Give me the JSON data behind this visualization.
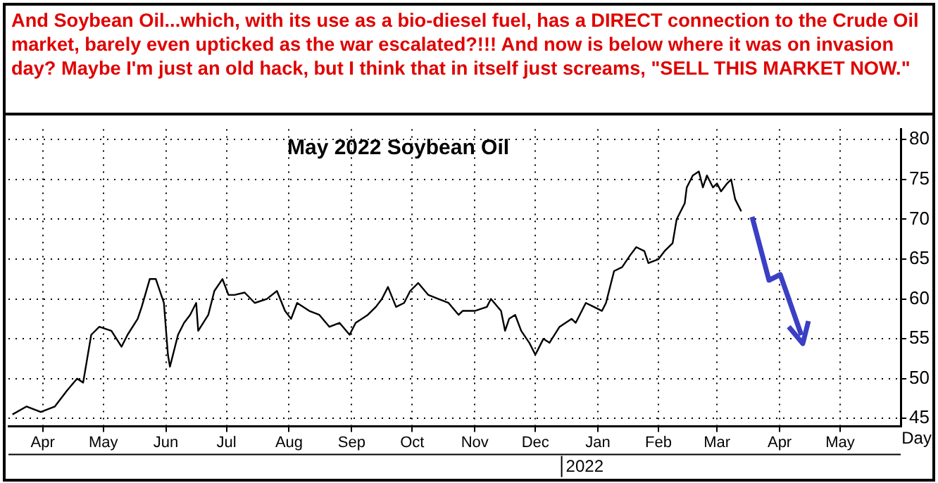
{
  "chart_data": {
    "type": "line",
    "title": "May 2022 Soybean Oil",
    "xlabel": "Day",
    "annotations": [
      "And Soybean Oil...which, with its use as a bio-diesel fuel, has a DIRECT connection to the Crude Oil market, barely even upticked as the war escalated?!!! And now is below where it was on invasion day? Maybe I'm just an old hack, but I think that in itself just screams, \"SELL THIS MARKET NOW.\"",
      "2022"
    ],
    "x": [
      "2021-04-01",
      "2021-04-08",
      "2021-04-15",
      "2021-04-22",
      "2021-04-28",
      "2021-05-03",
      "2021-05-06",
      "2021-05-10",
      "2021-05-14",
      "2021-05-20",
      "2021-05-25",
      "2021-05-28",
      "2021-06-02",
      "2021-06-04",
      "2021-06-08",
      "2021-06-11",
      "2021-06-15",
      "2021-06-17",
      "2021-06-18",
      "2021-06-22",
      "2021-06-25",
      "2021-06-28",
      "2021-07-01",
      "2021-07-02",
      "2021-07-07",
      "2021-07-10",
      "2021-07-14",
      "2021-07-17",
      "2021-07-20",
      "2021-07-25",
      "2021-07-30",
      "2021-08-05",
      "2021-08-10",
      "2021-08-14",
      "2021-08-17",
      "2021-08-20",
      "2021-08-26",
      "2021-08-31",
      "2021-09-05",
      "2021-09-10",
      "2021-09-15",
      "2021-09-18",
      "2021-09-24",
      "2021-09-28",
      "2021-10-01",
      "2021-10-04",
      "2021-10-08",
      "2021-10-12",
      "2021-10-15",
      "2021-10-19",
      "2021-10-24",
      "2021-10-29",
      "2021-11-03",
      "2021-11-08",
      "2021-11-10",
      "2021-11-16",
      "2021-11-22",
      "2021-11-24",
      "2021-11-29",
      "2021-12-01",
      "2021-12-03",
      "2021-12-06",
      "2021-12-09",
      "2021-12-13",
      "2021-12-16",
      "2021-12-20",
      "2021-12-23",
      "2021-12-28",
      "2022-01-03",
      "2022-01-05",
      "2022-01-10",
      "2022-01-14",
      "2022-01-18",
      "2022-01-20",
      "2022-01-24",
      "2022-01-28",
      "2022-02-01",
      "2022-02-04",
      "2022-02-08",
      "2022-02-10",
      "2022-02-15",
      "2022-02-18",
      "2022-02-22",
      "2022-02-24",
      "2022-02-28",
      "2022-03-01",
      "2022-03-04",
      "2022-03-07",
      "2022-03-09",
      "2022-03-11",
      "2022-03-14",
      "2022-03-16",
      "2022-03-18",
      "2022-03-21",
      "2022-03-23",
      "2022-03-25",
      "2022-03-28"
    ],
    "series": [
      {
        "color": "#000000",
        "values": [
          45.5,
          46.5,
          45.8,
          46.5,
          48.5,
          50,
          49.5,
          55.5,
          56.5,
          56,
          54,
          55.5,
          57.5,
          59,
          62.5,
          62.5,
          59.5,
          53,
          51.5,
          55.5,
          57,
          58,
          59.5,
          56,
          58,
          61,
          62.5,
          60.5,
          60.5,
          60.8,
          59.5,
          60,
          61,
          58.5,
          57.5,
          59.5,
          58.5,
          58,
          56.5,
          57,
          55.5,
          57,
          58,
          59,
          60,
          61.5,
          59,
          59.5,
          61,
          62,
          60.5,
          60,
          59.5,
          58,
          58.5,
          58.5,
          59,
          60,
          58.5,
          56,
          57.5,
          58,
          56,
          54.5,
          53,
          55,
          54.5,
          56.5,
          57.5,
          57,
          59.5,
          59,
          58.5,
          59.5,
          63.5,
          64,
          65.5,
          66.5,
          66,
          64.5,
          65,
          66,
          67,
          70,
          72,
          74,
          75.5,
          76,
          74,
          75.5,
          74,
          74.5,
          73.5,
          74.5,
          75,
          72.5,
          71
        ]
      }
    ],
    "xlim": [
      "2021-03-30",
      "2022-06-15"
    ],
    "xticks": [
      {
        "value": "2021-04-16",
        "label": "Apr"
      },
      {
        "value": "2021-05-16",
        "label": "May"
      },
      {
        "value": "2021-06-16",
        "label": "Jun"
      },
      {
        "value": "2021-07-16",
        "label": "Jul"
      },
      {
        "value": "2021-08-16",
        "label": "Aug"
      },
      {
        "value": "2021-09-16",
        "label": "Sep"
      },
      {
        "value": "2021-10-16",
        "label": "Oct"
      },
      {
        "value": "2021-11-16",
        "label": "Nov"
      },
      {
        "value": "2021-12-16",
        "label": "Dec"
      },
      {
        "value": "2022-01-16",
        "label": "Jan"
      },
      {
        "value": "2022-02-15",
        "label": "Feb"
      },
      {
        "value": "2022-03-16",
        "label": "Mar"
      },
      {
        "value": "2022-04-16",
        "label": "Apr"
      },
      {
        "value": "2022-05-16",
        "label": "May"
      }
    ],
    "ylim": [
      44,
      81.3
    ],
    "yticks": [
      45,
      50,
      55,
      60,
      65,
      70,
      75,
      80
    ],
    "grid": true,
    "marker": "none",
    "line_style": "solid",
    "legend": false
  }
}
